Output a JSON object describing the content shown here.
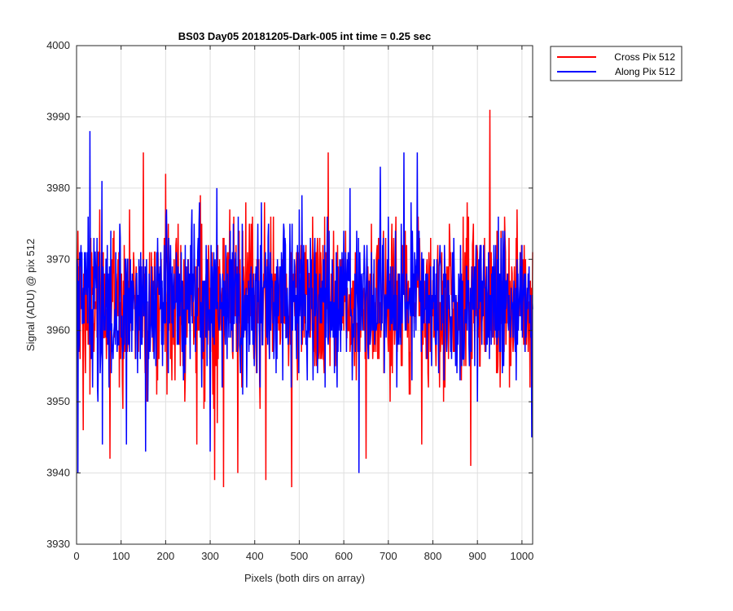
{
  "chart_data": {
    "type": "line",
    "title": "BS03 Day05 20181205-Dark-005 int time = 0.25 sec",
    "xlabel": "Pixels (both dirs on array)",
    "ylabel": "Signal (ADU) @ pix 512",
    "xlim": [
      0,
      1024
    ],
    "ylim": [
      3930,
      4000
    ],
    "xticks": [
      0,
      100,
      200,
      300,
      400,
      500,
      600,
      700,
      800,
      900,
      1000
    ],
    "yticks": [
      3930,
      3940,
      3950,
      3960,
      3970,
      3980,
      3990,
      4000
    ],
    "grid": true,
    "legend_position": "outside-top-right",
    "series": [
      {
        "name": "Cross Pix 512",
        "color": "#ff0000",
        "x_start": 1,
        "x_step": 1,
        "count": 1024,
        "mean": 3964,
        "std": 5.4,
        "min": 3938,
        "max": 3991,
        "points": [
          [
            15,
            3946
          ],
          [
            30,
            3951
          ],
          [
            75,
            3942
          ],
          [
            150,
            3985
          ],
          [
            200,
            3982
          ],
          [
            270,
            3944
          ],
          [
            310,
            3939
          ],
          [
            330,
            3938
          ],
          [
            362,
            3940
          ],
          [
            425,
            3939
          ],
          [
            483,
            3938
          ],
          [
            565,
            3985
          ],
          [
            650,
            3942
          ],
          [
            775,
            3944
          ],
          [
            885,
            3941
          ],
          [
            928,
            3991
          ]
        ]
      },
      {
        "name": "Along Pix 512",
        "color": "#0000ff",
        "x_start": 1,
        "x_step": 1,
        "count": 1024,
        "mean": 3964,
        "std": 5.4,
        "min": 3940,
        "max": 3988,
        "points": [
          [
            3,
            3940
          ],
          [
            30,
            3988
          ],
          [
            58,
            3944
          ],
          [
            112,
            3944
          ],
          [
            155,
            3943
          ],
          [
            300,
            3943
          ],
          [
            382,
            3952
          ],
          [
            500,
            3977
          ],
          [
            634,
            3940
          ],
          [
            682,
            3983
          ],
          [
            735,
            3985
          ],
          [
            765,
            3985
          ],
          [
            900,
            3950
          ],
          [
            1022,
            3945
          ]
        ]
      }
    ]
  }
}
